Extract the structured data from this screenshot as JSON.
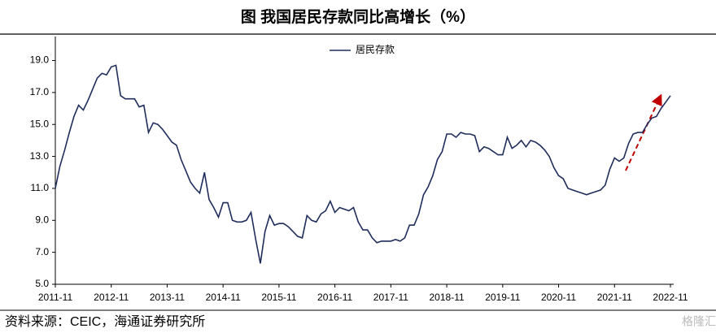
{
  "chart_data": {
    "type": "line",
    "title": "图  我国居民存款同比高增长（%）",
    "source": "资料来源：CEIC，海通证券研究所",
    "watermark": "格隆汇",
    "categories": [
      "2011-11",
      null,
      null,
      null,
      null,
      null,
      null,
      null,
      null,
      null,
      null,
      null,
      "2012-11",
      null,
      null,
      null,
      null,
      null,
      null,
      null,
      null,
      null,
      null,
      null,
      "2013-11",
      null,
      null,
      null,
      null,
      null,
      null,
      null,
      null,
      null,
      null,
      null,
      "2014-11",
      null,
      null,
      null,
      null,
      null,
      null,
      null,
      null,
      null,
      null,
      null,
      "2015-11",
      null,
      null,
      null,
      null,
      null,
      null,
      null,
      null,
      null,
      null,
      null,
      "2016-11",
      null,
      null,
      null,
      null,
      null,
      null,
      null,
      null,
      null,
      null,
      null,
      "2017-11",
      null,
      null,
      null,
      null,
      null,
      null,
      null,
      null,
      null,
      null,
      null,
      "2018-11",
      null,
      null,
      null,
      null,
      null,
      null,
      null,
      null,
      null,
      null,
      null,
      "2019-11",
      null,
      null,
      null,
      null,
      null,
      null,
      null,
      null,
      null,
      null,
      null,
      "2020-11",
      null,
      null,
      null,
      null,
      null,
      null,
      null,
      null,
      null,
      null,
      null,
      "2021-11",
      null,
      null,
      null,
      null,
      null,
      null,
      null,
      null,
      null,
      null,
      null,
      "2022-11"
    ],
    "series": [
      {
        "name": "居民存款",
        "color": "#1f2d5c",
        "values": [
          11.0,
          12.4,
          13.4,
          14.5,
          15.5,
          16.2,
          15.9,
          16.5,
          17.2,
          17.9,
          18.2,
          18.1,
          18.6,
          18.7,
          16.8,
          16.6,
          16.6,
          16.6,
          16.1,
          16.2,
          14.5,
          15.1,
          15.0,
          14.7,
          14.3,
          13.9,
          13.7,
          12.8,
          12.1,
          11.4,
          11.0,
          10.7,
          12.0,
          10.3,
          9.8,
          9.2,
          10.1,
          10.1,
          9.0,
          8.9,
          8.9,
          9.0,
          9.5,
          7.8,
          6.3,
          8.3,
          9.3,
          8.7,
          8.8,
          8.8,
          8.6,
          8.3,
          8.0,
          7.9,
          9.3,
          9.0,
          8.9,
          9.4,
          9.6,
          10.2,
          9.5,
          9.8,
          9.7,
          9.6,
          9.8,
          8.9,
          8.4,
          8.4,
          7.9,
          7.6,
          7.7,
          7.7,
          7.7,
          7.8,
          7.7,
          7.9,
          8.7,
          8.7,
          9.4,
          10.6,
          11.1,
          11.8,
          12.8,
          13.3,
          14.4,
          14.4,
          14.2,
          14.5,
          14.4,
          14.4,
          14.3,
          13.3,
          13.6,
          13.5,
          13.3,
          13.1,
          13.1,
          14.2,
          13.5,
          13.7,
          14.0,
          13.6,
          14.0,
          13.9,
          13.7,
          13.4,
          13.0,
          12.3,
          11.8,
          11.6,
          11.0,
          10.9,
          10.8,
          10.7,
          10.6,
          10.7,
          10.8,
          10.9,
          11.2,
          12.2,
          12.9,
          12.7,
          12.9,
          13.8,
          14.4,
          14.5,
          14.5,
          15.0,
          15.4,
          15.5,
          16.0,
          16.4,
          16.8
        ]
      }
    ],
    "ylim": [
      5,
      20.5
    ],
    "yticks": [
      {
        "value": 5,
        "label": "5.0"
      },
      {
        "value": 7,
        "label": "7.0"
      },
      {
        "value": 9,
        "label": "9.0"
      },
      {
        "value": 11,
        "label": "11.0"
      },
      {
        "value": 13,
        "label": "13.0"
      },
      {
        "value": 15,
        "label": "15.0"
      },
      {
        "value": 17,
        "label": "17.0"
      },
      {
        "value": 19,
        "label": "19.0"
      }
    ],
    "grid": false
  }
}
